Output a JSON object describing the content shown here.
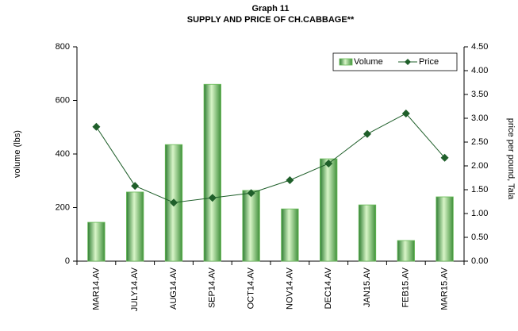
{
  "chart_data": {
    "type": "bar-line",
    "title": "Graph 11",
    "subtitle": "SUPPLY AND PRICE OF CH.CABBAGE**",
    "y_label": "volume (lbs)",
    "y2_label": "price per pound, Tala",
    "categories": [
      "MAR14.AV",
      "JULY14.AV",
      "AUG14.AV",
      "SEP14.AV",
      "OCT14.AV",
      "NOV14.AV",
      "DEC14.AV",
      "JAN15.AV",
      "FEB15.AV",
      "MAR15.AV"
    ],
    "series": [
      {
        "name": "Volume",
        "type": "bar",
        "color": "#66bb55",
        "values": [
          145,
          258,
          435,
          660,
          264,
          195,
          382,
          210,
          77,
          240
        ]
      },
      {
        "name": "Price",
        "type": "line",
        "axis": "y2",
        "color": "#1f5f2a",
        "values": [
          2.82,
          1.58,
          1.23,
          1.33,
          1.43,
          1.7,
          2.05,
          2.67,
          3.1,
          2.17
        ]
      }
    ],
    "ylim": [
      0,
      800
    ],
    "yticks": [
      0,
      200,
      400,
      600,
      800
    ],
    "y2lim": [
      0,
      4.5
    ],
    "y2ticks": [
      {
        "value": 0,
        "label": "0.00"
      },
      {
        "value": 0.5,
        "label": "0.50"
      },
      {
        "value": 1,
        "label": "1.00"
      },
      {
        "value": 1.5,
        "label": "1.50"
      },
      {
        "value": 2,
        "label": "2.00"
      },
      {
        "value": 2.5,
        "label": "2.50"
      },
      {
        "value": 3,
        "label": "3.00"
      },
      {
        "value": 3.5,
        "label": "3.50"
      },
      {
        "value": 4,
        "label": "4.00"
      },
      {
        "value": 4.5,
        "label": "4.50"
      }
    ],
    "legend": "top-right",
    "grid": false
  }
}
